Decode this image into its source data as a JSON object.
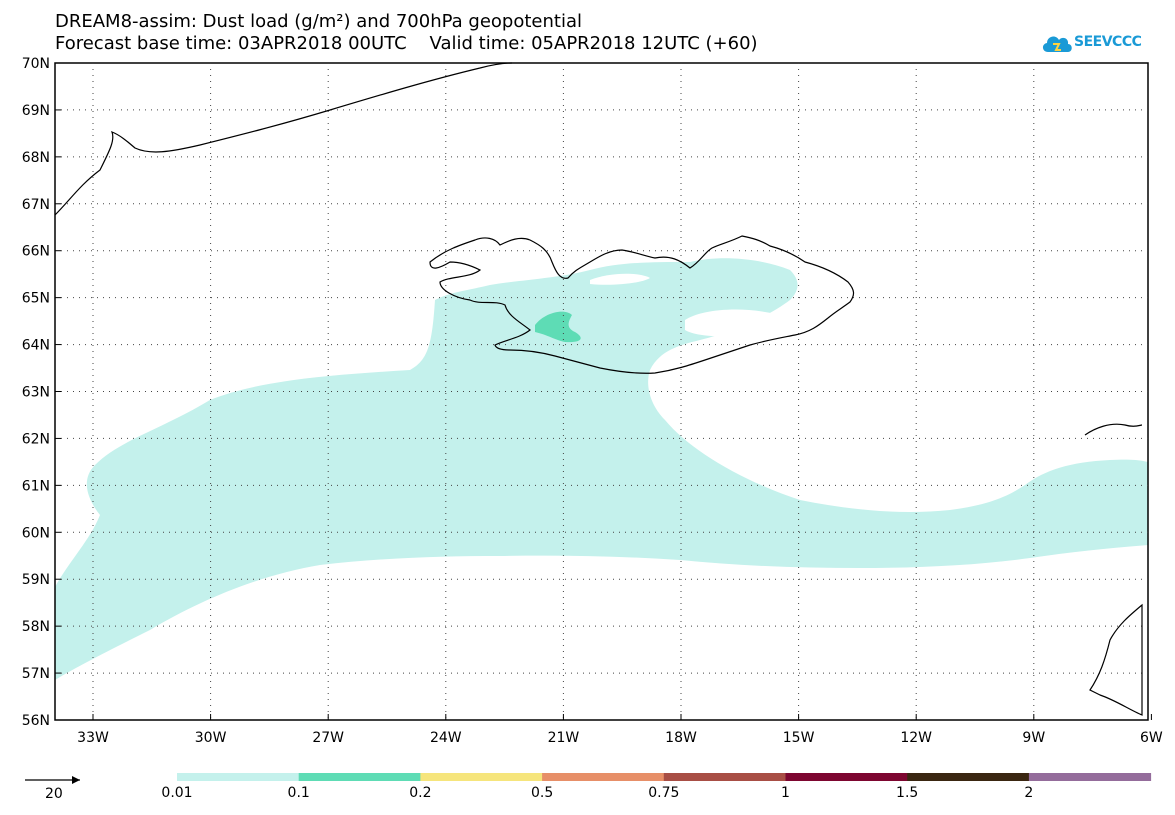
{
  "title_line1": "DREAM8-assim: Dust load (g/m²) and 700hPa geopotential",
  "title_line2": "Forecast base time: 03APR2018 00UTC    Valid time: 05APR2018 12UTC (+60)",
  "logo_text": "SEEVCCC",
  "logo_color": "#1a9ad6",
  "lat_labels": [
    "70N",
    "69N",
    "68N",
    "67N",
    "66N",
    "65N",
    "64N",
    "63N",
    "62N",
    "61N",
    "60N",
    "59N",
    "58N",
    "57N",
    "56N"
  ],
  "lon_labels": [
    "33W",
    "30W",
    "27W",
    "24W",
    "21W",
    "18W",
    "15W",
    "12W",
    "9W",
    "6W"
  ],
  "legend": {
    "colors": [
      "#c4f1ec",
      "#5edcb5",
      "#f6e57c",
      "#e78f68",
      "#a84e45",
      "#7d0630",
      "#3a2611",
      "#946c9b"
    ],
    "labels": [
      "0.01",
      "0.1",
      "0.2",
      "0.5",
      "0.75",
      "1",
      "1.5",
      "2"
    ]
  },
  "wind_reference": "20"
}
